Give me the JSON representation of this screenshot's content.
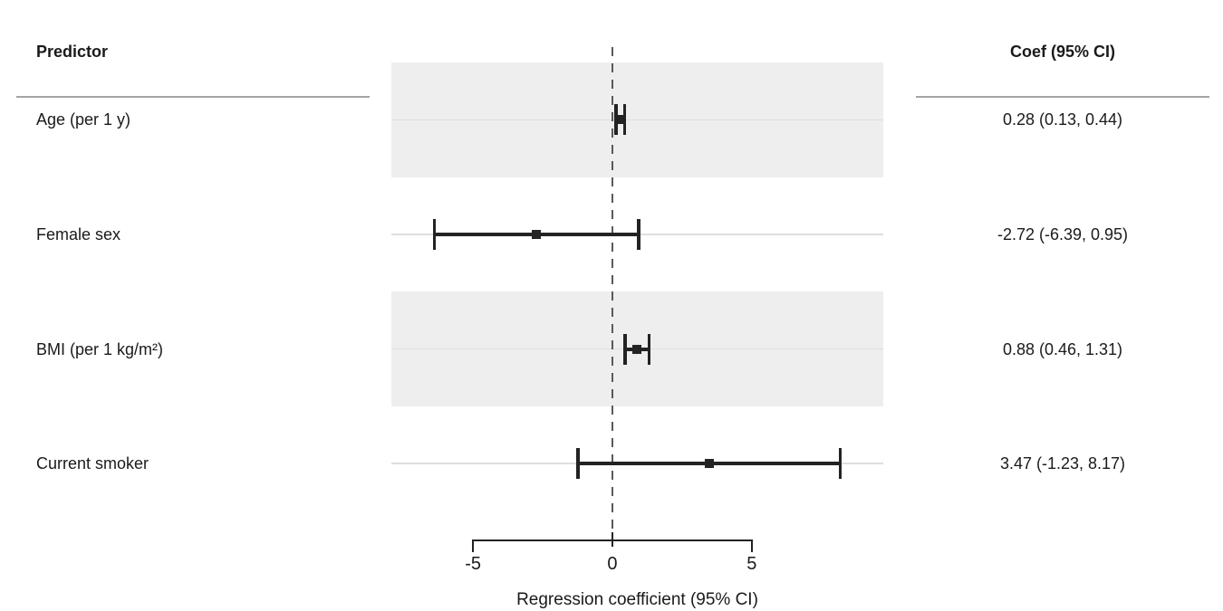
{
  "header": {
    "predictor_label": "Predictor",
    "coef_label": "Coef (95% CI)"
  },
  "axis": {
    "tick_labels": [
      "-5",
      "0",
      "5"
    ],
    "title": "Regression coefficient (95% CI)"
  },
  "colors": {
    "shading_band": "#eeeeee",
    "gridline": "#dedede",
    "error_bar": "#232323",
    "reference_line": "#5a5a5a",
    "header_rule": "#a4a4a4",
    "axis": "#222222",
    "text": "#1a1a1a"
  },
  "chart_data": {
    "type": "scatter",
    "variant": "forest-plot-horizontal-ci",
    "title": "",
    "xlabel": "Regression coefficient (95% CI)",
    "ylabel": "Predictor",
    "x_ticks": [
      -5,
      0,
      5
    ],
    "xlim": [
      -7.93,
      9.72
    ],
    "reference_line_x": 0,
    "grid": "row-center-horizontal-lines",
    "legend": "none",
    "rows": [
      {
        "label": "Age (per 1 y)",
        "estimate": 0.28,
        "ci_low": 0.13,
        "ci_high": 0.44,
        "coef_text": "0.28 (0.13, 0.44)",
        "shaded": true
      },
      {
        "label": "Female sex",
        "estimate": -2.72,
        "ci_low": -6.39,
        "ci_high": 0.95,
        "coef_text": "-2.72 (-6.39, 0.95)",
        "shaded": false
      },
      {
        "label": "BMI (per 1 kg/m²)",
        "estimate": 0.88,
        "ci_low": 0.46,
        "ci_high": 1.31,
        "coef_text": "0.88 (0.46, 1.31)",
        "shaded": true
      },
      {
        "label": "Current smoker",
        "estimate": 3.47,
        "ci_low": -1.23,
        "ci_high": 8.17,
        "coef_text": "3.47 (-1.23, 8.17)",
        "shaded": false
      }
    ]
  }
}
